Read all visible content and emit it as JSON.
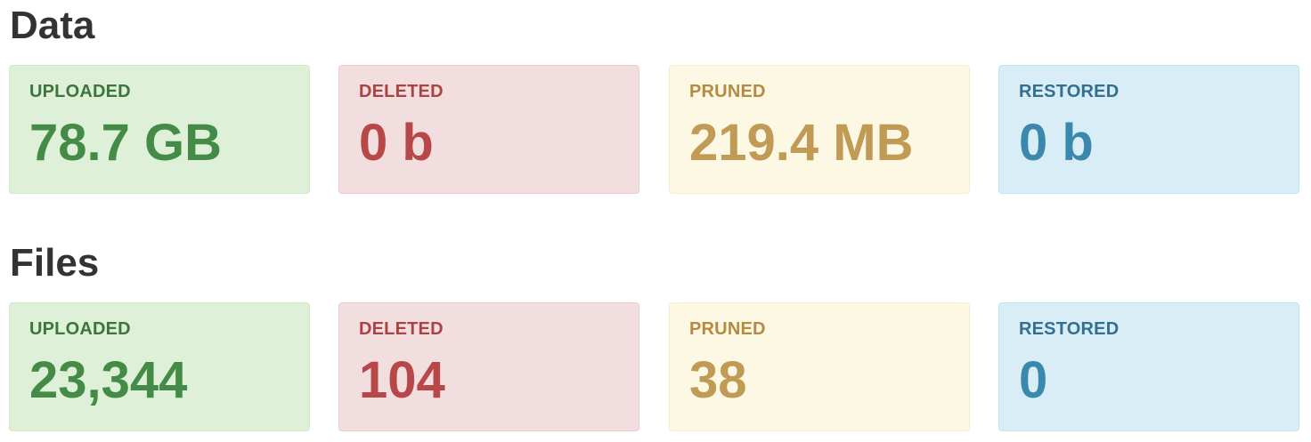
{
  "sections": [
    {
      "title": "Data",
      "cards": [
        {
          "label": "UPLOADED",
          "value": "78.7 GB",
          "status": "success",
          "color": "#3c763d"
        },
        {
          "label": "DELETED",
          "value": "0 b",
          "status": "danger",
          "color": "#a94442"
        },
        {
          "label": "PRUNED",
          "value": "219.4 MB",
          "status": "warning",
          "color": "#b58a43"
        },
        {
          "label": "RESTORED",
          "value": "0 b",
          "status": "info",
          "color": "#31708f"
        }
      ]
    },
    {
      "title": "Files",
      "cards": [
        {
          "label": "UPLOADED",
          "value": "23,344",
          "status": "success",
          "color": "#3c763d"
        },
        {
          "label": "DELETED",
          "value": "104",
          "status": "danger",
          "color": "#a94442"
        },
        {
          "label": "PRUNED",
          "value": "38",
          "status": "warning",
          "color": "#b58a43"
        },
        {
          "label": "RESTORED",
          "value": "0",
          "status": "info",
          "color": "#31708f"
        }
      ]
    }
  ]
}
